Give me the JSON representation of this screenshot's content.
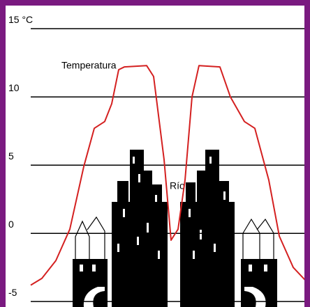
{
  "chart_data": {
    "type": "line",
    "annotations": [
      "Temperatura",
      "Río"
    ],
    "x": [
      0,
      4,
      9,
      14,
      19,
      22.75,
      26.5,
      29,
      31.5,
      33.5,
      41.5,
      44,
      47.75,
      50.25,
      52.75,
      55.25,
      57.75,
      60.25,
      67.75,
      71.5,
      76.5,
      80.25,
      85.25,
      89,
      94,
      100
    ],
    "series": [
      {
        "name": "Temperatura",
        "color": "#d42020",
        "values": [
          -3.8,
          -3.3,
          -2,
          0.3,
          4.9,
          7.7,
          8.2,
          9.5,
          12,
          12.2,
          12.3,
          11.5,
          5.4,
          -0.5,
          0.3,
          3.9,
          10,
          12.3,
          12.2,
          10,
          8.2,
          7.7,
          3.9,
          -0.2,
          -2.5,
          -3.8
        ]
      }
    ],
    "xlim": [
      0,
      100
    ],
    "ylim": [
      -5.4,
      16.7
    ],
    "yticks": [
      {
        "value": 15,
        "label": "15 °C"
      },
      10,
      5,
      0,
      -5
    ],
    "grid": true
  }
}
